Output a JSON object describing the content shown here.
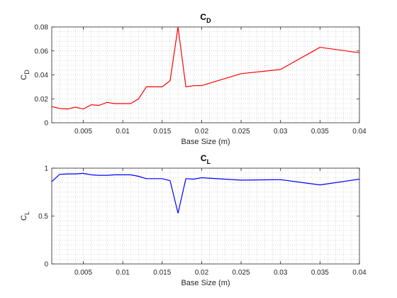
{
  "chart_data": [
    {
      "type": "line",
      "title": "C",
      "title_sub": "D",
      "xlabel": "Base Size (m)",
      "ylabel": "C",
      "ylabel_sub": "D",
      "xlim": [
        0.001,
        0.04
      ],
      "ylim": [
        0,
        0.08
      ],
      "xticks": [
        0.005,
        0.01,
        0.015,
        0.02,
        0.025,
        0.03,
        0.035,
        0.04
      ],
      "xtick_labels": [
        "0.005",
        "0.01",
        "0.015",
        "0.02",
        "0.025",
        "0.03",
        "0.035",
        "0.04"
      ],
      "yticks": [
        0,
        0.02,
        0.04,
        0.06,
        0.08
      ],
      "ytick_labels": [
        "0",
        "0.02",
        "0.04",
        "0.06",
        "0.08"
      ],
      "grid": "minor-dotted",
      "line_color": "#ff0000",
      "x": [
        0.001,
        0.002,
        0.003,
        0.004,
        0.005,
        0.006,
        0.007,
        0.008,
        0.009,
        0.01,
        0.011,
        0.012,
        0.013,
        0.015,
        0.016,
        0.017,
        0.018,
        0.019,
        0.02,
        0.025,
        0.03,
        0.035,
        0.04
      ],
      "y": [
        0.0135,
        0.012,
        0.0115,
        0.013,
        0.0115,
        0.015,
        0.0145,
        0.017,
        0.016,
        0.016,
        0.016,
        0.02,
        0.03,
        0.03,
        0.035,
        0.08,
        0.03,
        0.031,
        0.031,
        0.041,
        0.0445,
        0.063,
        0.0585
      ]
    },
    {
      "type": "line",
      "title": "C",
      "title_sub": "L",
      "xlabel": "Base Size (m)",
      "ylabel": "C",
      "ylabel_sub": "L",
      "xlim": [
        0.001,
        0.04
      ],
      "ylim": [
        0,
        1
      ],
      "xticks": [
        0.005,
        0.01,
        0.015,
        0.02,
        0.025,
        0.03,
        0.035,
        0.04
      ],
      "xtick_labels": [
        "0.005",
        "0.01",
        "0.015",
        "0.02",
        "0.025",
        "0.03",
        "0.035",
        "0.04"
      ],
      "yticks": [
        0,
        0.5,
        1
      ],
      "ytick_labels": [
        "0",
        "0.5",
        "1"
      ],
      "grid": "minor-dotted",
      "line_color": "#0000ff",
      "x": [
        0.001,
        0.002,
        0.003,
        0.004,
        0.005,
        0.006,
        0.007,
        0.008,
        0.009,
        0.01,
        0.011,
        0.012,
        0.013,
        0.015,
        0.016,
        0.017,
        0.018,
        0.019,
        0.02,
        0.025,
        0.03,
        0.035,
        0.04
      ],
      "y": [
        0.86,
        0.935,
        0.94,
        0.94,
        0.945,
        0.93,
        0.925,
        0.925,
        0.93,
        0.93,
        0.93,
        0.915,
        0.89,
        0.89,
        0.87,
        0.53,
        0.89,
        0.885,
        0.9,
        0.875,
        0.88,
        0.825,
        0.885
      ]
    }
  ]
}
